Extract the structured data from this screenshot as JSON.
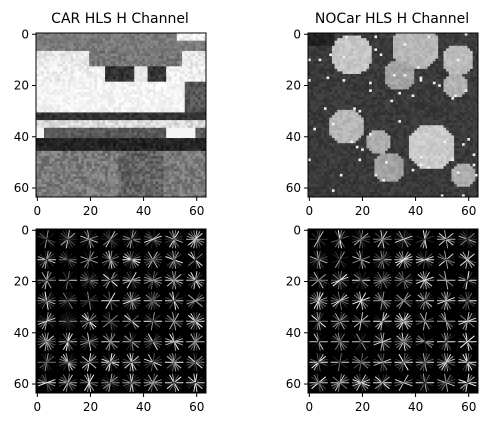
{
  "figure": {
    "background": "#ffffff"
  },
  "chart_data": [
    {
      "type": "heatmap",
      "title": "CAR HLS H Channel",
      "colormap": "gray",
      "xlim": [
        0,
        63
      ],
      "ylim": [
        63,
        0
      ],
      "xticks": [
        0,
        20,
        40,
        60
      ],
      "yticks": [
        0,
        20,
        40,
        60
      ],
      "xticklabels": [
        "0",
        "20",
        "40",
        "60"
      ],
      "yticklabels": [
        "0",
        "20",
        "40",
        "60"
      ],
      "pattern": "car-hls"
    },
    {
      "type": "heatmap",
      "title": "NOCar HLS H Channel",
      "colormap": "gray",
      "xlim": [
        0,
        63
      ],
      "ylim": [
        63,
        0
      ],
      "xticks": [
        0,
        20,
        40,
        60
      ],
      "yticks": [
        0,
        20,
        40,
        60
      ],
      "xticklabels": [
        "0",
        "20",
        "40",
        "60"
      ],
      "yticklabels": [
        "0",
        "20",
        "40",
        "60"
      ],
      "pattern": "nocar-hls"
    },
    {
      "type": "heatmap",
      "title": "",
      "colormap": "gray",
      "xlim": [
        0,
        63
      ],
      "ylim": [
        63,
        0
      ],
      "xticks": [
        0,
        20,
        40,
        60
      ],
      "yticks": [
        0,
        20,
        40,
        60
      ],
      "xticklabels": [
        "0",
        "20",
        "40",
        "60"
      ],
      "yticklabels": [
        "0",
        "20",
        "40",
        "60"
      ],
      "pattern": "hog",
      "cell_grid": 8
    },
    {
      "type": "heatmap",
      "title": "",
      "colormap": "gray",
      "xlim": [
        0,
        63
      ],
      "ylim": [
        63,
        0
      ],
      "xticks": [
        0,
        20,
        40,
        60
      ],
      "yticks": [
        0,
        20,
        40,
        60
      ],
      "xticklabels": [
        "0",
        "20",
        "40",
        "60"
      ],
      "yticklabels": [
        "0",
        "20",
        "40",
        "60"
      ],
      "pattern": "hog",
      "cell_grid": 8
    }
  ]
}
